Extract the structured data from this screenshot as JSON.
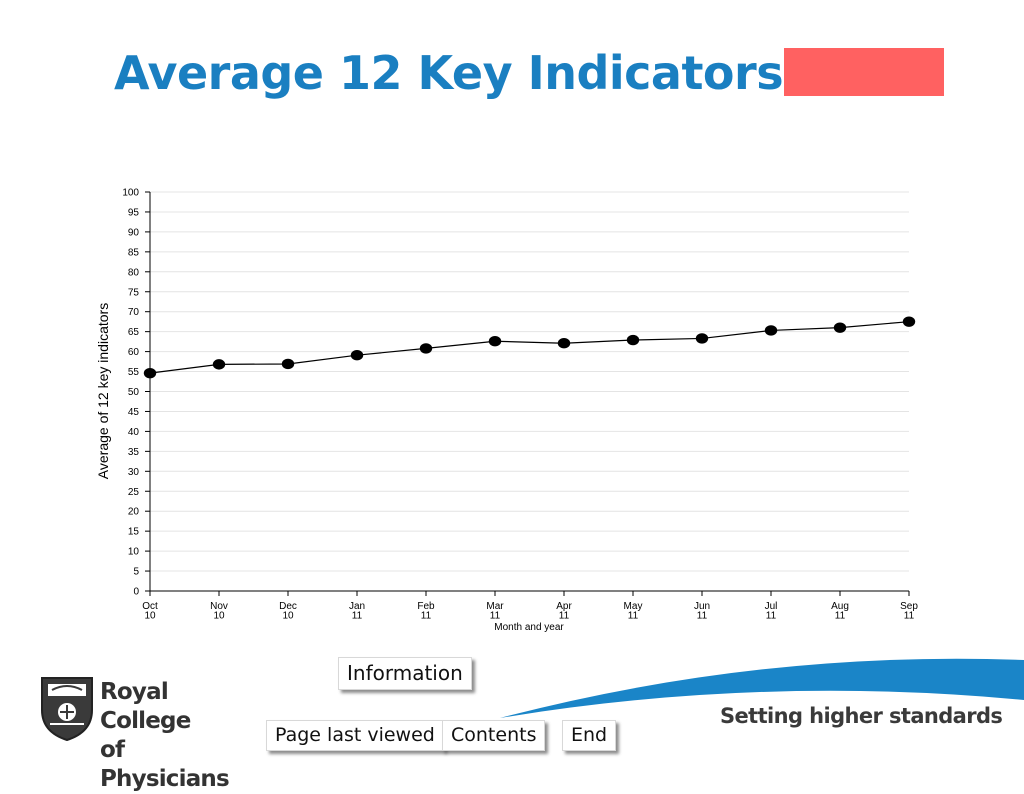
{
  "slide": {
    "title": "Average 12 Key Indicators",
    "status_color": "#ff6161",
    "title_color": "#1a7fc1"
  },
  "chart_data": {
    "type": "line",
    "ylabel": "Average of 12 key indicators",
    "xlabel": "Month and year",
    "ylim": [
      0,
      100
    ],
    "yticks": [
      0,
      5,
      10,
      15,
      20,
      25,
      30,
      35,
      40,
      45,
      50,
      55,
      60,
      65,
      70,
      75,
      80,
      85,
      90,
      95,
      100
    ],
    "categories": [
      [
        "Oct",
        "10"
      ],
      [
        "Nov",
        "10"
      ],
      [
        "Dec",
        "10"
      ],
      [
        "Jan",
        "11"
      ],
      [
        "Feb",
        "11"
      ],
      [
        "Mar",
        "11"
      ],
      [
        "Apr",
        "11"
      ],
      [
        "May",
        "11"
      ],
      [
        "Jun",
        "11"
      ],
      [
        "Jul",
        "11"
      ],
      [
        "Aug",
        "11"
      ],
      [
        "Sep",
        "11"
      ]
    ],
    "series": [
      {
        "values": [
          54.6,
          56.8,
          56.9,
          59.1,
          60.8,
          62.6,
          62.1,
          62.9,
          63.3,
          65.3,
          66.0,
          67.5
        ]
      }
    ],
    "grid": true
  },
  "nav": {
    "information": "Information",
    "page_last_viewed": "Page last viewed",
    "contents": "Contents",
    "end": "End"
  },
  "footer": {
    "logo_line1": "Royal College",
    "logo_line2": "of Physicians",
    "tagline": "Setting higher standards",
    "swoosh_color": "#1a85c8"
  }
}
